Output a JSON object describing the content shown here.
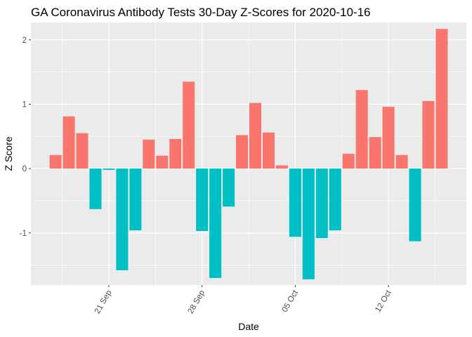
{
  "chart_data": {
    "type": "bar",
    "title": "GA Coronavirus Antibody Tests 30-Day Z-Scores for 2020-10-16",
    "xlabel": "Date",
    "ylabel": "Z Score",
    "x": [
      "2020-09-17",
      "2020-09-18",
      "2020-09-19",
      "2020-09-20",
      "2020-09-21",
      "2020-09-22",
      "2020-09-23",
      "2020-09-24",
      "2020-09-25",
      "2020-09-26",
      "2020-09-27",
      "2020-09-28",
      "2020-09-29",
      "2020-09-30",
      "2020-10-01",
      "2020-10-02",
      "2020-10-03",
      "2020-10-04",
      "2020-10-05",
      "2020-10-06",
      "2020-10-07",
      "2020-10-08",
      "2020-10-09",
      "2020-10-10",
      "2020-10-11",
      "2020-10-12",
      "2020-10-13",
      "2020-10-14",
      "2020-10-15",
      "2020-10-16"
    ],
    "values": [
      0.21,
      0.81,
      0.55,
      -0.63,
      -0.02,
      -1.58,
      -0.96,
      0.45,
      0.2,
      0.46,
      1.35,
      -0.97,
      -1.7,
      -0.59,
      0.52,
      1.02,
      0.56,
      0.05,
      -1.06,
      -1.72,
      -1.08,
      -0.96,
      0.23,
      1.22,
      0.49,
      0.96,
      0.21,
      -1.13,
      1.05,
      2.17
    ],
    "x_ticks": [
      {
        "date": "2020-09-21",
        "label": "21 Sep"
      },
      {
        "date": "2020-09-28",
        "label": "28 Sep"
      },
      {
        "date": "2020-10-05",
        "label": "05 Oct"
      },
      {
        "date": "2020-10-12",
        "label": "12 Oct"
      }
    ],
    "y_ticks": [
      -1,
      0,
      1,
      2
    ],
    "ylim": [
      -1.81,
      2.27
    ],
    "colors": {
      "positive": "#F8766D",
      "negative": "#00BFC4"
    },
    "grid": true,
    "panel_background": "#EBEBEB",
    "legend": "none"
  }
}
